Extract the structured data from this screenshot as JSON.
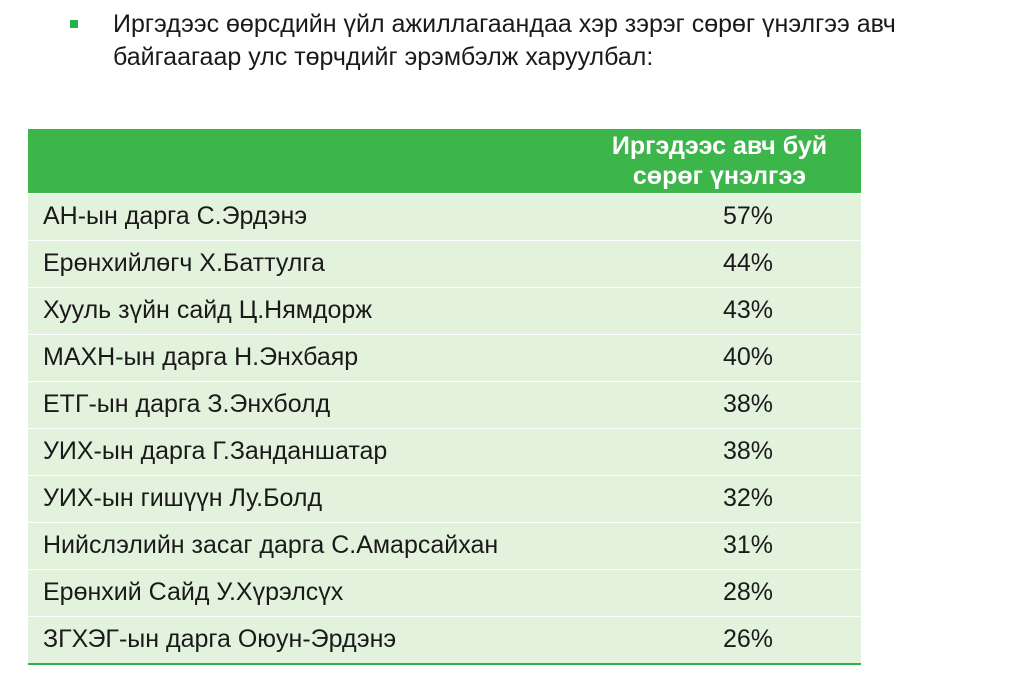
{
  "bullet": {
    "text": "Иргэдээс өөрсдийн үйл ажиллагаандаа хэр зэрэг сөрөг үнэлгээ авч байгаагаар улс төрчдийг эрэмбэлж харуулбал:"
  },
  "table": {
    "header": "Иргэдээс авч буй сөрөг үнэлгээ",
    "rows": [
      {
        "name": "АН-ын дарга С.Эрдэнэ",
        "value": "57%"
      },
      {
        "name": "Ерөнхийлөгч Х.Баттулга",
        "value": "44%"
      },
      {
        "name": "Хууль зүйн сайд Ц.Нямдорж",
        "value": "43%"
      },
      {
        "name": "МАХН-ын дарга Н.Энхбаяр",
        "value": "40%"
      },
      {
        "name": "ЕТГ-ын дарга З.Энхболд",
        "value": "38%"
      },
      {
        "name": "УИХ-ын дарга Г.Занданшатар",
        "value": "38%"
      },
      {
        "name": "УИХ-ын гишүүн Лу.Болд",
        "value": "32%"
      },
      {
        "name": "Нийслэлийн засаг дарга С.Амарсайхан",
        "value": "31%"
      },
      {
        "name": "Ерөнхий Сайд У.Хүрэлсүх",
        "value": "28%"
      },
      {
        "name": "ЗГХЭГ-ын дарга Оюун-Эрдэнэ",
        "value": "26%"
      }
    ]
  },
  "colors": {
    "bullet": "#22b14c",
    "header_bg": "#3cb54a",
    "row_bg": "#e3f2dc"
  }
}
